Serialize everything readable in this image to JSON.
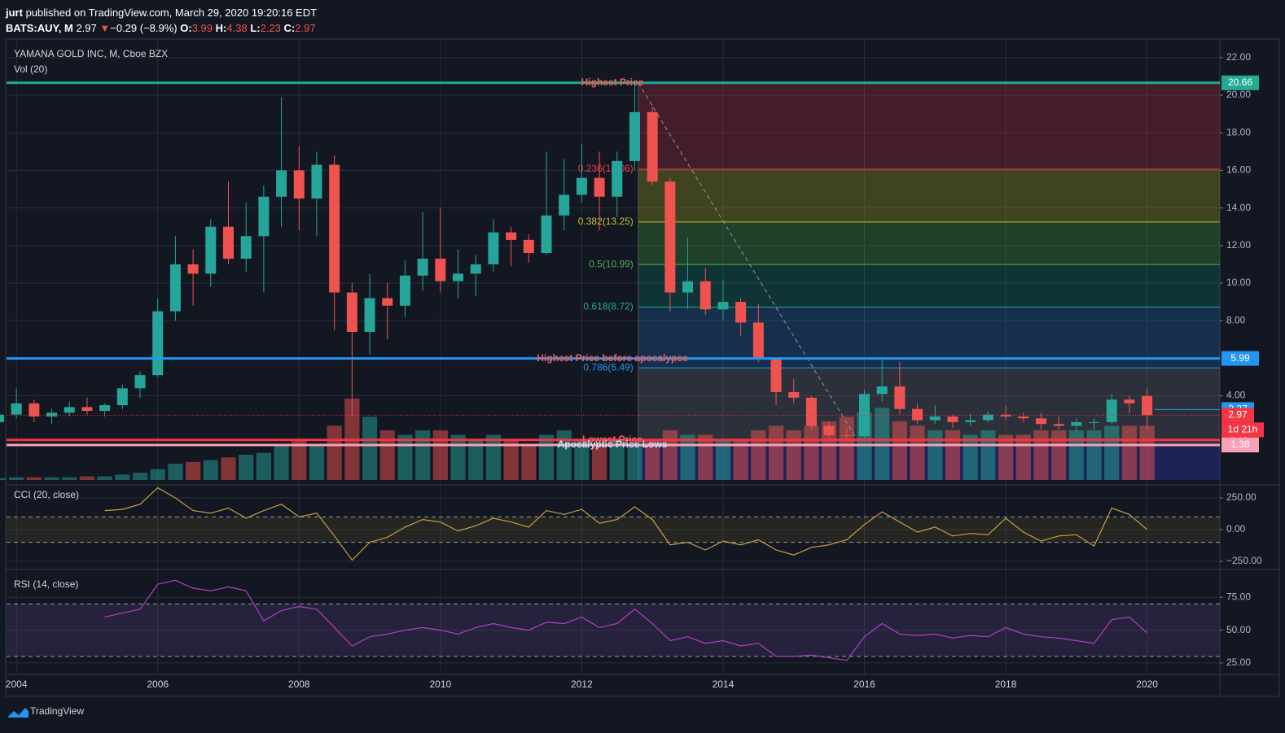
{
  "header": {
    "publisher": "jurt",
    "published": "published on TradingView.com, March 29, 2020 19:20:16 EDT",
    "symbol": "BATS:AUY, M",
    "last": "2.97",
    "direction": "▼",
    "change": "−0.29 (−8.9%)",
    "o_label": "O:",
    "o": "3.99",
    "h_label": "H:",
    "h": "4.38",
    "l_label": "L:",
    "l": "2.23",
    "c_label": "C:",
    "c": "2.97"
  },
  "footer": {
    "brand": "TradingView"
  },
  "chart_data": [
    {
      "type": "candlestick",
      "title": "YAMANA GOLD INC, M, Cboe BZX",
      "volume_label": "Vol (20)",
      "x": [
        2003.75,
        2004.0,
        2004.25,
        2004.5,
        2004.75,
        2005.0,
        2005.25,
        2005.5,
        2005.75,
        2006.0,
        2006.25,
        2006.5,
        2006.75,
        2007.0,
        2007.25,
        2007.5,
        2007.75,
        2008.0,
        2008.25,
        2008.5,
        2008.75,
        2009.0,
        2009.25,
        2009.5,
        2009.75,
        2010.0,
        2010.25,
        2010.5,
        2010.75,
        2011.0,
        2011.25,
        2011.5,
        2011.75,
        2012.0,
        2012.25,
        2012.5,
        2012.75,
        2013.0,
        2013.25,
        2013.5,
        2013.75,
        2014.0,
        2014.25,
        2014.5,
        2014.75,
        2015.0,
        2015.25,
        2015.5,
        2015.75,
        2016.0,
        2016.25,
        2016.5,
        2016.75,
        2017.0,
        2017.25,
        2017.5,
        2017.75,
        2018.0,
        2018.25,
        2018.5,
        2018.75,
        2019.0,
        2019.25,
        2019.5,
        2019.75,
        2020.0
      ],
      "open": [
        2.6,
        3.0,
        3.6,
        2.9,
        3.1,
        3.4,
        3.2,
        3.5,
        4.4,
        5.1,
        8.5,
        11.0,
        10.5,
        13.0,
        11.3,
        12.5,
        14.6,
        16.0,
        14.5,
        16.3,
        9.5,
        7.4,
        9.2,
        8.8,
        10.4,
        11.3,
        10.1,
        10.5,
        11.0,
        12.7,
        12.3,
        11.6,
        13.6,
        14.7,
        15.6,
        14.6,
        16.5,
        19.1,
        15.4,
        9.5,
        10.1,
        8.6,
        9.0,
        7.9,
        6.0,
        4.2,
        3.9,
        2.4,
        1.9,
        1.86,
        4.1,
        4.5,
        3.3,
        2.7,
        2.9,
        2.6,
        2.7,
        3.0,
        2.9,
        2.8,
        2.5,
        2.4,
        2.6,
        2.6,
        3.8,
        3.99
      ],
      "high": [
        3.3,
        4.4,
        3.8,
        3.3,
        3.7,
        3.9,
        3.6,
        4.6,
        5.3,
        9.2,
        12.5,
        11.8,
        13.4,
        15.4,
        14.3,
        15.2,
        19.9,
        17.3,
        17.0,
        16.8,
        10.0,
        10.5,
        10.0,
        11.2,
        13.8,
        14.0,
        11.8,
        11.5,
        13.4,
        13.0,
        12.6,
        17.0,
        16.6,
        17.4,
        17.0,
        17.0,
        20.6,
        19.4,
        15.6,
        12.4,
        10.8,
        10.2,
        9.2,
        8.9,
        6.0,
        4.9,
        4.0,
        2.6,
        2.3,
        4.3,
        5.99,
        5.8,
        3.6,
        3.5,
        3.0,
        3.0,
        3.2,
        3.5,
        3.1,
        3.1,
        2.9,
        2.8,
        2.8,
        4.1,
        4.0,
        4.38
      ],
      "low": [
        2.4,
        2.8,
        2.6,
        2.5,
        2.9,
        3.0,
        2.9,
        3.3,
        3.9,
        5.0,
        8.0,
        8.8,
        9.8,
        11.0,
        10.6,
        9.5,
        13.0,
        12.8,
        12.5,
        7.5,
        2.9,
        6.2,
        7.0,
        8.2,
        9.6,
        9.5,
        9.2,
        9.3,
        10.6,
        10.9,
        11.1,
        11.5,
        12.8,
        14.3,
        12.8,
        13.5,
        16.0,
        15.2,
        8.5,
        8.6,
        8.3,
        8.0,
        7.2,
        5.8,
        3.5,
        3.6,
        2.2,
        1.65,
        1.7,
        1.8,
        3.7,
        3.0,
        2.5,
        2.5,
        2.3,
        2.4,
        2.6,
        2.7,
        2.6,
        2.2,
        2.2,
        2.1,
        2.2,
        2.5,
        3.1,
        2.23
      ],
      "close": [
        3.0,
        3.6,
        2.9,
        3.1,
        3.4,
        3.2,
        3.5,
        4.4,
        5.1,
        8.5,
        11.0,
        10.5,
        13.0,
        11.3,
        12.5,
        14.6,
        16.0,
        14.5,
        16.3,
        9.5,
        7.4,
        9.2,
        8.8,
        10.4,
        11.3,
        10.1,
        10.5,
        11.0,
        12.7,
        12.3,
        11.6,
        13.6,
        14.7,
        15.6,
        14.6,
        16.5,
        19.1,
        15.4,
        9.5,
        10.1,
        8.6,
        9.0,
        7.9,
        6.0,
        4.2,
        3.9,
        2.4,
        1.9,
        1.86,
        4.1,
        4.5,
        3.3,
        2.7,
        2.9,
        2.6,
        2.7,
        3.0,
        2.9,
        2.8,
        2.5,
        2.4,
        2.6,
        2.6,
        3.8,
        3.6,
        2.97
      ],
      "volume": [
        2,
        3,
        3,
        3,
        3,
        4,
        4,
        6,
        8,
        12,
        18,
        20,
        22,
        25,
        28,
        30,
        40,
        45,
        40,
        60,
        90,
        70,
        55,
        50,
        55,
        55,
        50,
        45,
        50,
        45,
        40,
        50,
        55,
        45,
        40,
        45,
        40,
        45,
        55,
        50,
        50,
        45,
        45,
        55,
        60,
        55,
        60,
        65,
        70,
        75,
        80,
        65,
        60,
        55,
        55,
        50,
        55,
        50,
        50,
        55,
        55,
        55,
        55,
        60,
        60,
        60
      ],
      "up_color": "#26a69a",
      "down_color": "#ef5350",
      "xlim": [
        2003.86,
        2021.03
      ],
      "xticks": [
        2004,
        2006,
        2008,
        2010,
        2012,
        2014,
        2016,
        2018,
        2020
      ],
      "ylim": [
        -0.48,
        22.99
      ],
      "yticks": [
        {
          "value": 4,
          "label": "4.00"
        },
        {
          "value": 8,
          "label": "8.00"
        },
        {
          "value": 10,
          "label": "10.00"
        },
        {
          "value": 12,
          "label": "12.00"
        },
        {
          "value": 14,
          "label": "14.00"
        },
        {
          "value": 16,
          "label": "16.00"
        },
        {
          "value": 18,
          "label": "18.00"
        },
        {
          "value": 20,
          "label": "20.00"
        },
        {
          "value": 22,
          "label": "22.00"
        }
      ],
      "grid": true,
      "fib": {
        "start": 2012.8,
        "levels": [
          {
            "value": 20.66,
            "color": "#22ab94",
            "fill": "rgba(242,54,69,0.22)"
          },
          {
            "value": 16.06,
            "label": "0.236(16.06)",
            "color": "#f23645",
            "fill": "rgba(150,150,30,0.35)"
          },
          {
            "value": 13.25,
            "label": "0.382(13.25)",
            "color": "#c0c030",
            "fill": "rgba(60,160,60,0.3)"
          },
          {
            "value": 10.99,
            "label": "0.5(10.99)",
            "color": "#4caf50",
            "fill": "rgba(8,153,129,0.22)"
          },
          {
            "value": 8.72,
            "label": "0.618(8.72)",
            "color": "#22ab94",
            "fill": "rgba(33,120,200,0.25)"
          },
          {
            "value": 5.49,
            "label": "0.786(5.49)",
            "color": "#2196f3",
            "fill": "rgba(120,123,134,0.25)"
          },
          {
            "value": 1.38,
            "color": "#f7a1b6",
            "fill": "rgba(40,50,150,0.45)"
          }
        ]
      },
      "trendline": {
        "x": [
          2012.8,
          2015.9
        ],
        "y": [
          20.66,
          1.65
        ],
        "color": "#9598a1"
      },
      "levels": [
        {
          "name": "Highest Price",
          "value": 20.66,
          "color": "#22ab94",
          "label_color": "#f0605a"
        },
        {
          "name": "Highest Price before apocalypse",
          "value": 5.99,
          "color": "#2196f3",
          "label_color": "#f0605a"
        },
        {
          "name": "Lowest Price",
          "value": 1.65,
          "color": "#f23645",
          "label_color": "#f0605a"
        },
        {
          "name": "Apocalyptic Price Lows",
          "value": 1.38,
          "color": "#f7a1b6",
          "label_color": "#c8e0f8"
        }
      ],
      "marker": {
        "value": 3.27,
        "color": "#2196f3"
      },
      "last_price": {
        "value": 2.97,
        "color": "#f23645",
        "countdown": "1d 21h"
      }
    },
    {
      "type": "line",
      "title": "CCI (20, close)",
      "color": "#c8a040",
      "band": [
        -100,
        100
      ],
      "band_fill": "rgba(140,120,40,0.15)",
      "values": [
        null,
        null,
        null,
        null,
        null,
        null,
        150,
        160,
        200,
        330,
        250,
        150,
        130,
        170,
        90,
        150,
        200,
        100,
        130,
        -50,
        -240,
        -100,
        -60,
        20,
        80,
        60,
        -10,
        30,
        90,
        60,
        20,
        150,
        120,
        160,
        50,
        80,
        180,
        80,
        -120,
        -100,
        -160,
        -90,
        -120,
        -80,
        -160,
        -200,
        -140,
        -120,
        -80,
        40,
        140,
        60,
        -20,
        20,
        -50,
        -30,
        -40,
        90,
        -20,
        -90,
        -50,
        -40,
        -130,
        170,
        120,
        0
      ],
      "ylim": [
        -314,
        340
      ],
      "yticks": [
        {
          "value": 250,
          "label": "250.00"
        },
        {
          "value": 0,
          "label": "0.00"
        },
        {
          "value": -250,
          "label": "−250.00"
        }
      ]
    },
    {
      "type": "line",
      "title": "RSI (14, close)",
      "color": "#b040c0",
      "band": [
        30,
        70
      ],
      "band_fill": "rgba(126,87,194,0.18)",
      "values": [
        null,
        null,
        null,
        null,
        null,
        null,
        60,
        63,
        66,
        85,
        88,
        82,
        80,
        83,
        80,
        57,
        65,
        68,
        66,
        52,
        38,
        45,
        47,
        50,
        52,
        50,
        47,
        52,
        55,
        52,
        50,
        56,
        55,
        60,
        52,
        55,
        66,
        55,
        42,
        45,
        40,
        42,
        38,
        40,
        30,
        30,
        31,
        29,
        27,
        45,
        55,
        47,
        46,
        47,
        44,
        46,
        45,
        52,
        47,
        45,
        44,
        42,
        40,
        58,
        60,
        48
      ],
      "ylim": [
        16.9,
        96.25
      ],
      "yticks": [
        {
          "value": 75,
          "label": "75.00"
        },
        {
          "value": 50,
          "label": "50.00"
        },
        {
          "value": 25,
          "label": "25.00"
        }
      ]
    }
  ]
}
